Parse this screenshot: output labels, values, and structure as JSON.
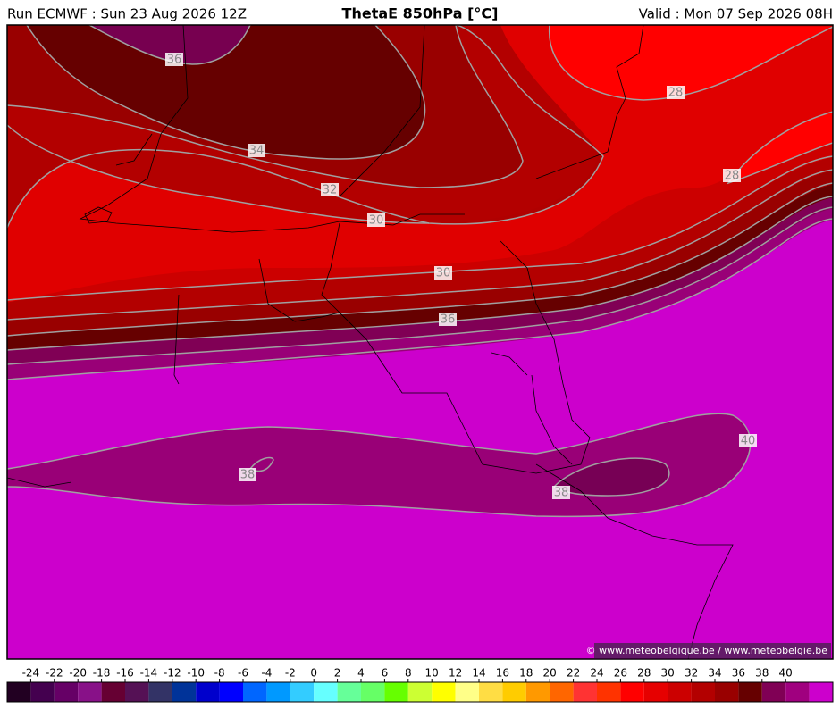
{
  "header": {
    "run": "Run ECMWF : Sun 23 Aug 2026 12Z",
    "title": "ThetaE 850hPa [°C]",
    "valid": "Valid : Mon 07 Sep 2026 08H"
  },
  "map": {
    "contour_labels": [
      "36",
      "34",
      "32",
      "30",
      "30",
      "36",
      "28",
      "28",
      "40",
      "38",
      "38"
    ],
    "credit": "© www.meteobelgique.be / www.meteobelgie.be"
  },
  "colorbar": {
    "labels": [
      "-24",
      "-22",
      "-20",
      "-18",
      "-16",
      "-14",
      "-12",
      "-10",
      "-8",
      "-6",
      "-4",
      "-2",
      "0",
      "2",
      "4",
      "6",
      "8",
      "10",
      "12",
      "14",
      "16",
      "18",
      "20",
      "22",
      "24",
      "26",
      "28",
      "30",
      "32",
      "34",
      "36",
      "38",
      "40"
    ],
    "colors": [
      "#220022",
      "#44004f",
      "#660066",
      "#881188",
      "#660033",
      "#551155",
      "#333366",
      "#003399",
      "#0000cc",
      "#0000ff",
      "#0066ff",
      "#0099ff",
      "#33ccff",
      "#66ffff",
      "#66ff99",
      "#66ff66",
      "#66ff00",
      "#ccff33",
      "#ffff00",
      "#ffff88",
      "#ffdd44",
      "#ffcc00",
      "#ff9900",
      "#ff6600",
      "#ff3333",
      "#ff3300",
      "#ff0000",
      "#e60000",
      "#cc0000",
      "#b30000",
      "#990000",
      "#660000",
      "#800055",
      "#a0007f",
      "#cc00cc"
    ]
  }
}
